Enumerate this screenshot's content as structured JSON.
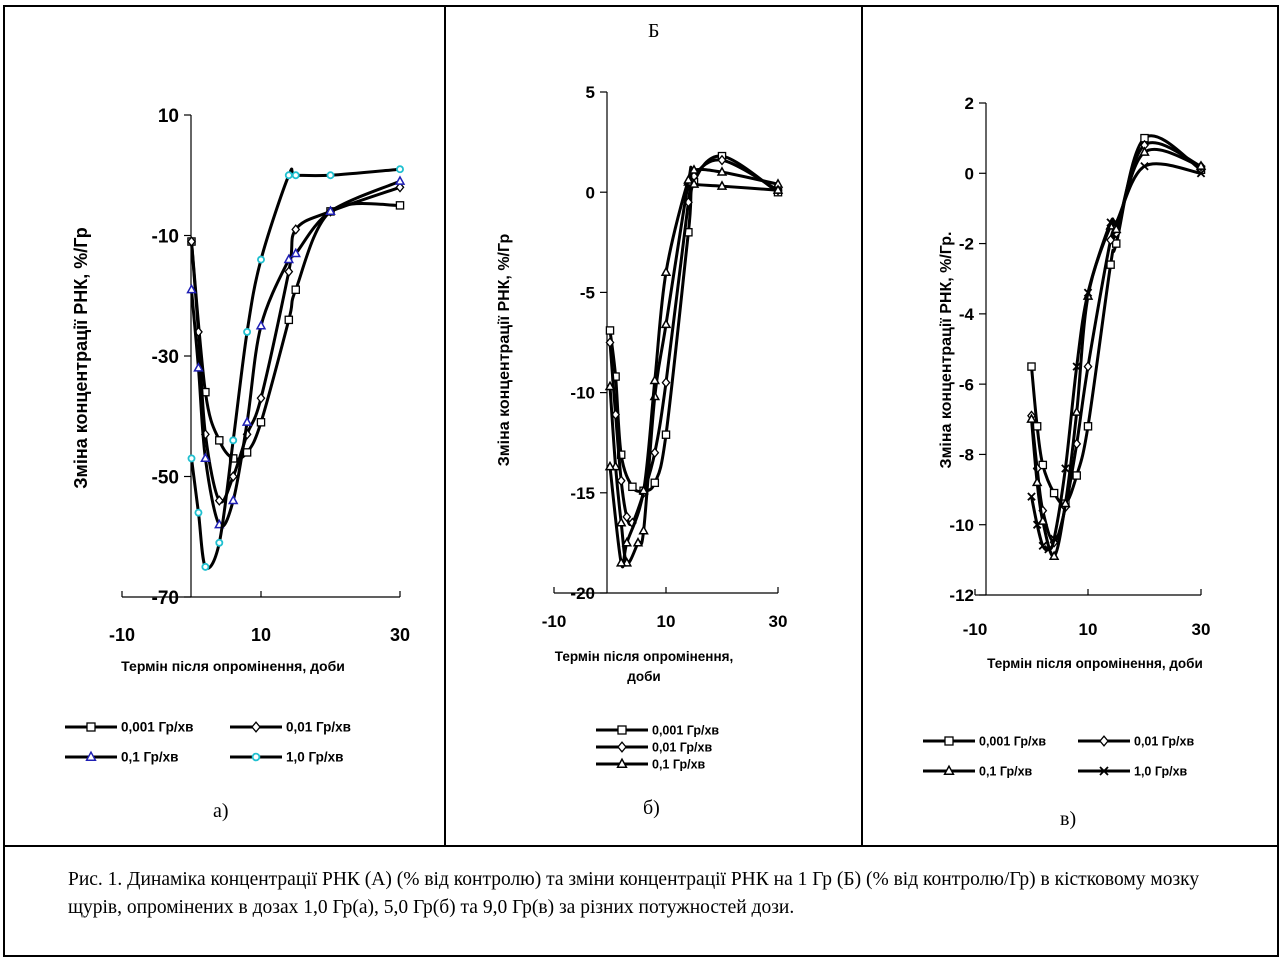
{
  "panel_group_label": "Б",
  "caption": "Рис. 1. Динаміка концентрації РНК (А) (% від контролю) та зміни концентрації РНК на 1 Гр (Б) (% від контролю/Гр) в кістковому мозку щурів, опромінених в дозах 1,0 Гр(а), 5,0 Гр(б) та 9,0 Гр(в) за різних потужностей дози.",
  "chart_data": [
    {
      "id": "a",
      "type": "line",
      "panel_label": "а)",
      "xlabel": "Термін після опромінення, доби",
      "ylabel": "Зміна концентрації РНК, %/Гр",
      "xlim": [
        -10,
        30
      ],
      "ylim": [
        -70,
        10
      ],
      "xticks": [
        -10,
        10,
        30
      ],
      "yticks": [
        10,
        -10,
        -30,
        -50,
        -70
      ],
      "tick_labels_x": [
        "-10",
        "10",
        "30"
      ],
      "tick_labels_y": [
        "10",
        "-10",
        "-30",
        "-50",
        "-70"
      ],
      "legend_columns": 2,
      "series": [
        {
          "name": "0,001 Гр/хв",
          "marker": "square",
          "color": "#000000",
          "x": [
            0,
            2,
            4,
            6,
            8,
            10,
            14,
            15,
            20,
            30
          ],
          "y": [
            -11,
            -36,
            -44,
            -47,
            -46,
            -41,
            -24,
            -19,
            -6,
            -5
          ]
        },
        {
          "name": "0,01 Гр/хв",
          "marker": "diamond",
          "color": "#000000",
          "x": [
            0,
            1,
            2,
            4,
            6,
            8,
            10,
            14,
            15,
            20,
            30
          ],
          "y": [
            -11,
            -26,
            -43,
            -54,
            -50,
            -43,
            -37,
            -16,
            -9,
            -6,
            -2
          ]
        },
        {
          "name": "0,1 Гр/хв",
          "marker": "triangle",
          "color": "#1f1fb4",
          "x": [
            0,
            1,
            2,
            4,
            6,
            8,
            10,
            14,
            15,
            20,
            30
          ],
          "y": [
            -19,
            -32,
            -47,
            -58,
            -54,
            -41,
            -25,
            -14,
            -13,
            -6,
            -1
          ]
        },
        {
          "name": "1,0 Гр/хв",
          "marker": "circle",
          "color": "#20c0d0",
          "x": [
            0,
            1,
            2,
            4,
            6,
            8,
            10,
            14,
            15,
            20,
            30
          ],
          "y": [
            -47,
            -56,
            -65,
            -61,
            -44,
            -26,
            -14,
            0,
            0,
            0,
            1
          ]
        }
      ]
    },
    {
      "id": "b",
      "type": "line",
      "panel_label": "б)",
      "xlabel": "Термін після опромінення, доби",
      "ylabel": "Зміна концентрації РНК, %/Гр",
      "xlim": [
        -10,
        30
      ],
      "ylim": [
        -20,
        5
      ],
      "xticks": [
        -10,
        10,
        30
      ],
      "yticks": [
        5,
        0,
        -5,
        -10,
        -15,
        -20
      ],
      "tick_labels_x": [
        "-10",
        "10",
        "30"
      ],
      "tick_labels_y": [
        "5",
        "0",
        "-5",
        "-10",
        "-15",
        "-20"
      ],
      "legend_columns": 1,
      "series": [
        {
          "name": "0,001 Гр/хв",
          "marker": "square",
          "color": "#000000",
          "x": [
            0,
            1,
            2,
            4,
            6,
            8,
            10,
            14,
            15,
            20,
            30
          ],
          "y": [
            -6.9,
            -9.2,
            -13.1,
            -14.7,
            -14.9,
            -14.5,
            -12.1,
            -2.0,
            0.5,
            1.8,
            0.0
          ]
        },
        {
          "name": "0,01 Гр/хв",
          "marker": "diamond",
          "color": "#000000",
          "x": [
            0,
            1,
            2,
            3,
            4,
            6,
            8,
            10,
            14,
            15,
            20,
            30
          ],
          "y": [
            -7.5,
            -11.1,
            -14.4,
            -16.2,
            -16.5,
            -15.0,
            -13.0,
            -9.5,
            -0.5,
            0.8,
            1.6,
            0.1
          ]
        },
        {
          "name": "0,1 Гр/хв",
          "marker": "triangle",
          "color": "#000000",
          "x": [
            0,
            1,
            2,
            3,
            5,
            6,
            8,
            10,
            14,
            15,
            20,
            30
          ],
          "y": [
            -9.7,
            -13.7,
            -16.5,
            -18.5,
            -17.5,
            -16.9,
            -10.2,
            -6.6,
            0.5,
            1.1,
            1.0,
            0.4
          ]
        },
        {
          "name": "",
          "marker": "triangle",
          "color": "#000000",
          "x": [
            0,
            2,
            3,
            6,
            8,
            10,
            14,
            15,
            20,
            30
          ],
          "y": [
            -13.7,
            -18.5,
            -17.5,
            -14.9,
            -9.4,
            -4.0,
            0.6,
            0.4,
            0.3,
            0.1
          ]
        }
      ]
    },
    {
      "id": "c",
      "type": "line",
      "panel_label": "в)",
      "xlabel": "Термін після опромінення, доби",
      "ylabel": "Зміна концентрації РНК, %/Гр.",
      "xlim": [
        -10,
        30
      ],
      "ylim": [
        -12,
        2
      ],
      "xticks": [
        -10,
        10,
        30
      ],
      "yticks": [
        2,
        0,
        -2,
        -4,
        -6,
        -8,
        -10,
        -12
      ],
      "tick_labels_x": [
        "-10",
        "10",
        "30"
      ],
      "tick_labels_y": [
        "2",
        "0",
        "-2",
        "-4",
        "-6",
        "-8",
        "-10",
        "-12"
      ],
      "legend_columns": 2,
      "series": [
        {
          "name": "0,001 Гр/хв",
          "marker": "square",
          "color": "#000000",
          "x": [
            0,
            1,
            2,
            4,
            6,
            8,
            10,
            14,
            15,
            20,
            30
          ],
          "y": [
            -5.5,
            -7.2,
            -8.3,
            -9.1,
            -9.4,
            -8.6,
            -7.2,
            -2.6,
            -2.0,
            1.0,
            0.1
          ]
        },
        {
          "name": "0,01 Гр/хв",
          "marker": "diamond",
          "color": "#000000",
          "x": [
            0,
            1,
            2,
            4,
            6,
            8,
            10,
            14,
            15,
            20,
            30
          ],
          "y": [
            -6.9,
            -8.4,
            -9.6,
            -10.5,
            -9.5,
            -7.7,
            -5.5,
            -1.9,
            -1.7,
            0.8,
            0.2
          ]
        },
        {
          "name": "0,1 Гр/хв",
          "marker": "triangle",
          "color": "#000000",
          "x": [
            0,
            1,
            2,
            4,
            6,
            8,
            10,
            14,
            15,
            20,
            30
          ],
          "y": [
            -7.0,
            -8.8,
            -9.9,
            -10.9,
            -9.4,
            -6.8,
            -3.5,
            -1.5,
            -1.6,
            0.6,
            0.2
          ]
        },
        {
          "name": "1,0 Гр/хв",
          "marker": "x",
          "color": "#000000",
          "x": [
            0,
            1,
            2,
            3,
            4,
            6,
            8,
            10,
            14,
            15,
            20,
            30
          ],
          "y": [
            -9.2,
            -10.0,
            -10.6,
            -10.7,
            -10.4,
            -8.4,
            -5.5,
            -3.4,
            -1.4,
            -1.4,
            0.2,
            0.0
          ]
        }
      ]
    }
  ]
}
